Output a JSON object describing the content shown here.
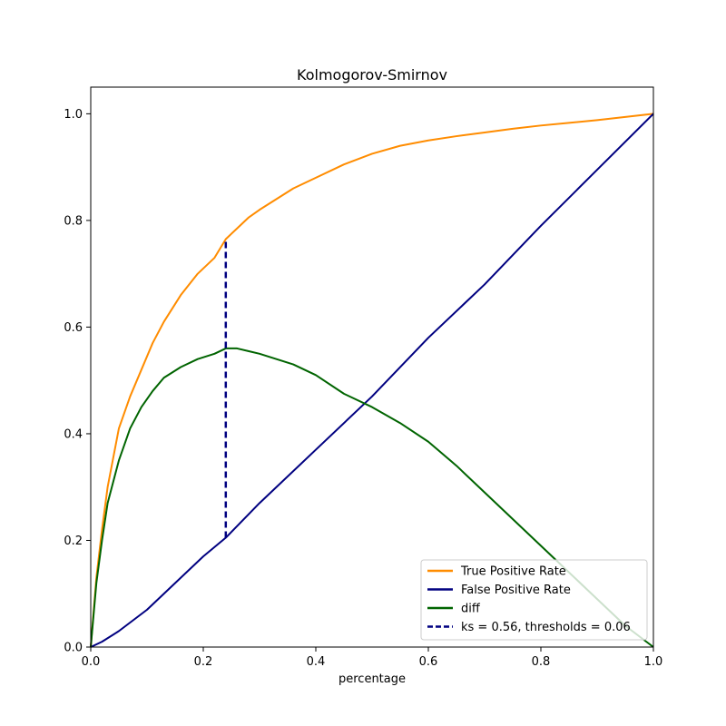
{
  "chart_data": {
    "type": "line",
    "title": "Kolmogorov-Smirnov",
    "xlabel": "percentage",
    "ylabel": "",
    "xlim": [
      0,
      1
    ],
    "ylim": [
      0,
      1.05
    ],
    "x_ticks": [
      0,
      0.2,
      0.4,
      0.6,
      0.8,
      1.0
    ],
    "y_ticks": [
      0,
      0.2,
      0.4,
      0.6,
      0.8,
      1.0
    ],
    "x_tick_labels": [
      "0.0",
      "0.2",
      "0.4",
      "0.6",
      "0.8",
      "1.0"
    ],
    "y_tick_labels": [
      "0.0",
      "0.2",
      "0.4",
      "0.6",
      "0.8",
      "1.0"
    ],
    "grid": false,
    "legend_position": "lower-right",
    "series": [
      {
        "name": "True Positive Rate",
        "color": "#ff8c00",
        "dash": false,
        "x": [
          0,
          0.01,
          0.02,
          0.03,
          0.05,
          0.07,
          0.09,
          0.11,
          0.13,
          0.16,
          0.19,
          0.22,
          0.24,
          0.26,
          0.28,
          0.3,
          0.33,
          0.36,
          0.4,
          0.45,
          0.5,
          0.55,
          0.6,
          0.65,
          0.7,
          0.75,
          0.8,
          0.85,
          0.9,
          0.95,
          1.0
        ],
        "y": [
          0,
          0.13,
          0.22,
          0.3,
          0.41,
          0.47,
          0.52,
          0.57,
          0.61,
          0.66,
          0.7,
          0.73,
          0.765,
          0.785,
          0.805,
          0.82,
          0.84,
          0.86,
          0.88,
          0.905,
          0.925,
          0.94,
          0.95,
          0.958,
          0.965,
          0.972,
          0.978,
          0.983,
          0.988,
          0.994,
          1.0
        ]
      },
      {
        "name": "False Positive Rate",
        "color": "#000080",
        "dash": false,
        "x": [
          0,
          0.02,
          0.05,
          0.1,
          0.15,
          0.2,
          0.24,
          0.3,
          0.4,
          0.5,
          0.6,
          0.7,
          0.8,
          0.9,
          1.0
        ],
        "y": [
          0,
          0.01,
          0.03,
          0.07,
          0.12,
          0.17,
          0.205,
          0.27,
          0.37,
          0.47,
          0.58,
          0.68,
          0.79,
          0.895,
          1.0
        ]
      },
      {
        "name": "diff",
        "color": "#006400",
        "dash": false,
        "x": [
          0,
          0.01,
          0.02,
          0.03,
          0.05,
          0.07,
          0.09,
          0.11,
          0.13,
          0.16,
          0.19,
          0.22,
          0.24,
          0.26,
          0.28,
          0.3,
          0.33,
          0.36,
          0.4,
          0.45,
          0.5,
          0.55,
          0.6,
          0.65,
          0.7,
          0.75,
          0.8,
          0.85,
          0.9,
          0.95,
          1.0
        ],
        "y": [
          0,
          0.12,
          0.2,
          0.27,
          0.35,
          0.41,
          0.45,
          0.48,
          0.505,
          0.525,
          0.54,
          0.55,
          0.56,
          0.56,
          0.555,
          0.55,
          0.54,
          0.53,
          0.51,
          0.475,
          0.45,
          0.42,
          0.385,
          0.34,
          0.29,
          0.24,
          0.19,
          0.14,
          0.09,
          0.04,
          0.0
        ]
      }
    ],
    "ks_line": {
      "name": "ks = 0.56, thresholds = 0.06",
      "color": "#000080",
      "x": 0.24,
      "y_start": 0.205,
      "y_end": 0.765
    }
  }
}
